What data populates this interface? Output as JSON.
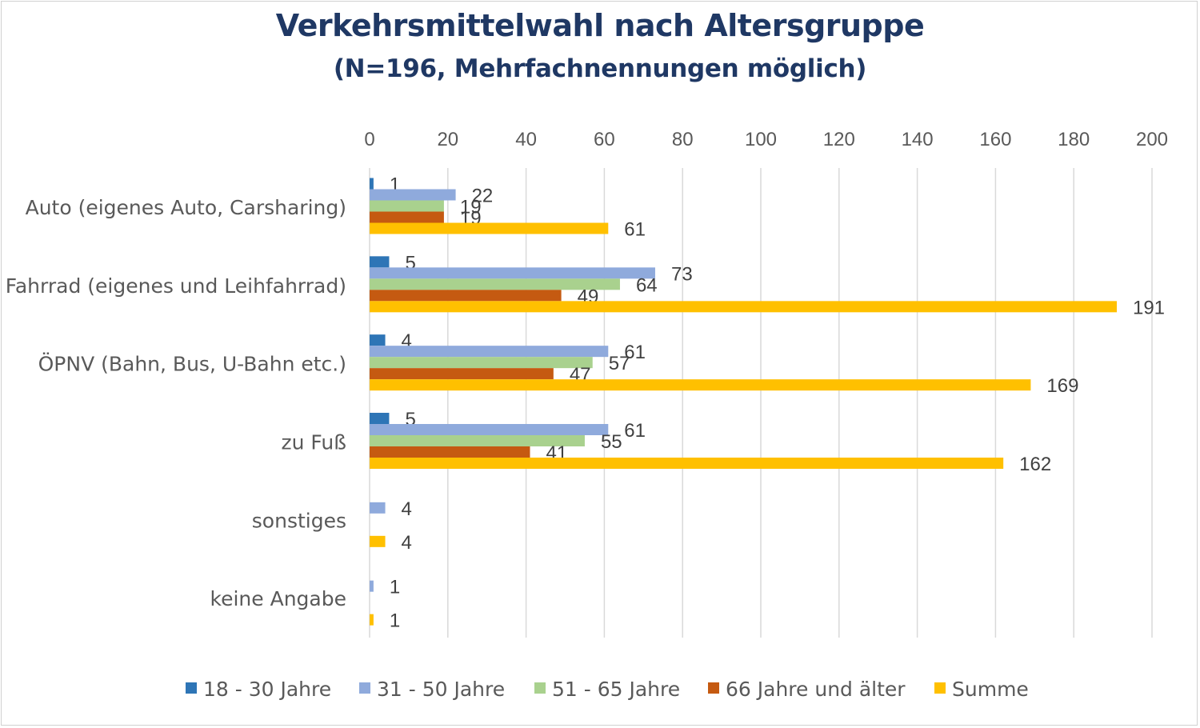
{
  "chart_data": {
    "type": "bar",
    "orientation": "horizontal",
    "title": "Verkehrsmittelwahl nach Altersgruppe",
    "subtitle": "(N=196, Mehrfachnennungen möglich)",
    "categories": [
      "Auto (eigenes Auto, Carsharing)",
      "Fahrrad (eigenes und Leihfahrrad)",
      "ÖPNV (Bahn, Bus, U-Bahn etc.)",
      "zu Fuß",
      "sonstiges",
      "keine Angabe"
    ],
    "series": [
      {
        "name": "18 - 30 Jahre",
        "color": "#2e75b6",
        "values": [
          1,
          5,
          4,
          5,
          null,
          null
        ]
      },
      {
        "name": "31 - 50 Jahre",
        "color": "#8faadc",
        "values": [
          22,
          73,
          61,
          61,
          4,
          1
        ]
      },
      {
        "name": "51 - 65 Jahre",
        "color": "#a9d18e",
        "values": [
          19,
          64,
          57,
          55,
          null,
          null
        ]
      },
      {
        "name": "66 Jahre und älter",
        "color": "#c55a11",
        "values": [
          19,
          49,
          47,
          41,
          null,
          null
        ]
      },
      {
        "name": "Summe",
        "color": "#ffc000",
        "values": [
          61,
          191,
          169,
          162,
          4,
          1
        ]
      }
    ],
    "xlim": [
      0,
      200
    ],
    "xticks": [
      "0",
      "20",
      "40",
      "60",
      "80",
      "100",
      "120",
      "140",
      "160",
      "180",
      "200"
    ],
    "axis_position": "top",
    "grid": true,
    "legend": "bottom"
  }
}
